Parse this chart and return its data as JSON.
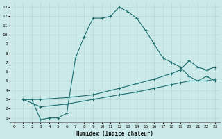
{
  "xlabel": "Humidex (Indice chaleur)",
  "xlim": [
    -0.5,
    23.5
  ],
  "ylim": [
    0.5,
    13.5
  ],
  "xticks": [
    0,
    1,
    2,
    3,
    4,
    5,
    6,
    7,
    8,
    9,
    10,
    11,
    12,
    13,
    14,
    15,
    16,
    17,
    18,
    19,
    20,
    21,
    22,
    23
  ],
  "yticks": [
    1,
    2,
    3,
    4,
    5,
    6,
    7,
    8,
    9,
    10,
    11,
    12,
    13
  ],
  "bg_color": "#cce9e9",
  "grid_color": "#b8d8d8",
  "line_color": "#1a6e6e",
  "line1_x": [
    1,
    2,
    3,
    4,
    5,
    6,
    7,
    8,
    9,
    10,
    11,
    12,
    13,
    14,
    15,
    16,
    17,
    18,
    19,
    20,
    21,
    22,
    23
  ],
  "line1_y": [
    3.0,
    3.0,
    0.8,
    1.0,
    1.0,
    1.5,
    7.5,
    9.8,
    11.8,
    11.8,
    12.0,
    13.0,
    12.5,
    11.8,
    10.5,
    9.0,
    7.5,
    7.0,
    6.5,
    5.5,
    5.0,
    5.5,
    5.0
  ],
  "line2_x": [
    1,
    3,
    6,
    9,
    12,
    14,
    16,
    18,
    19,
    20,
    21,
    22,
    23
  ],
  "line2_y": [
    3.0,
    3.0,
    3.2,
    3.5,
    4.2,
    4.7,
    5.2,
    5.8,
    6.2,
    7.2,
    6.5,
    6.2,
    6.5
  ],
  "line3_x": [
    1,
    3,
    6,
    9,
    12,
    14,
    16,
    18,
    19,
    20,
    21,
    22,
    23
  ],
  "line3_y": [
    3.0,
    2.2,
    2.5,
    3.0,
    3.5,
    3.8,
    4.2,
    4.6,
    4.8,
    5.0,
    5.0,
    5.0,
    5.2
  ]
}
